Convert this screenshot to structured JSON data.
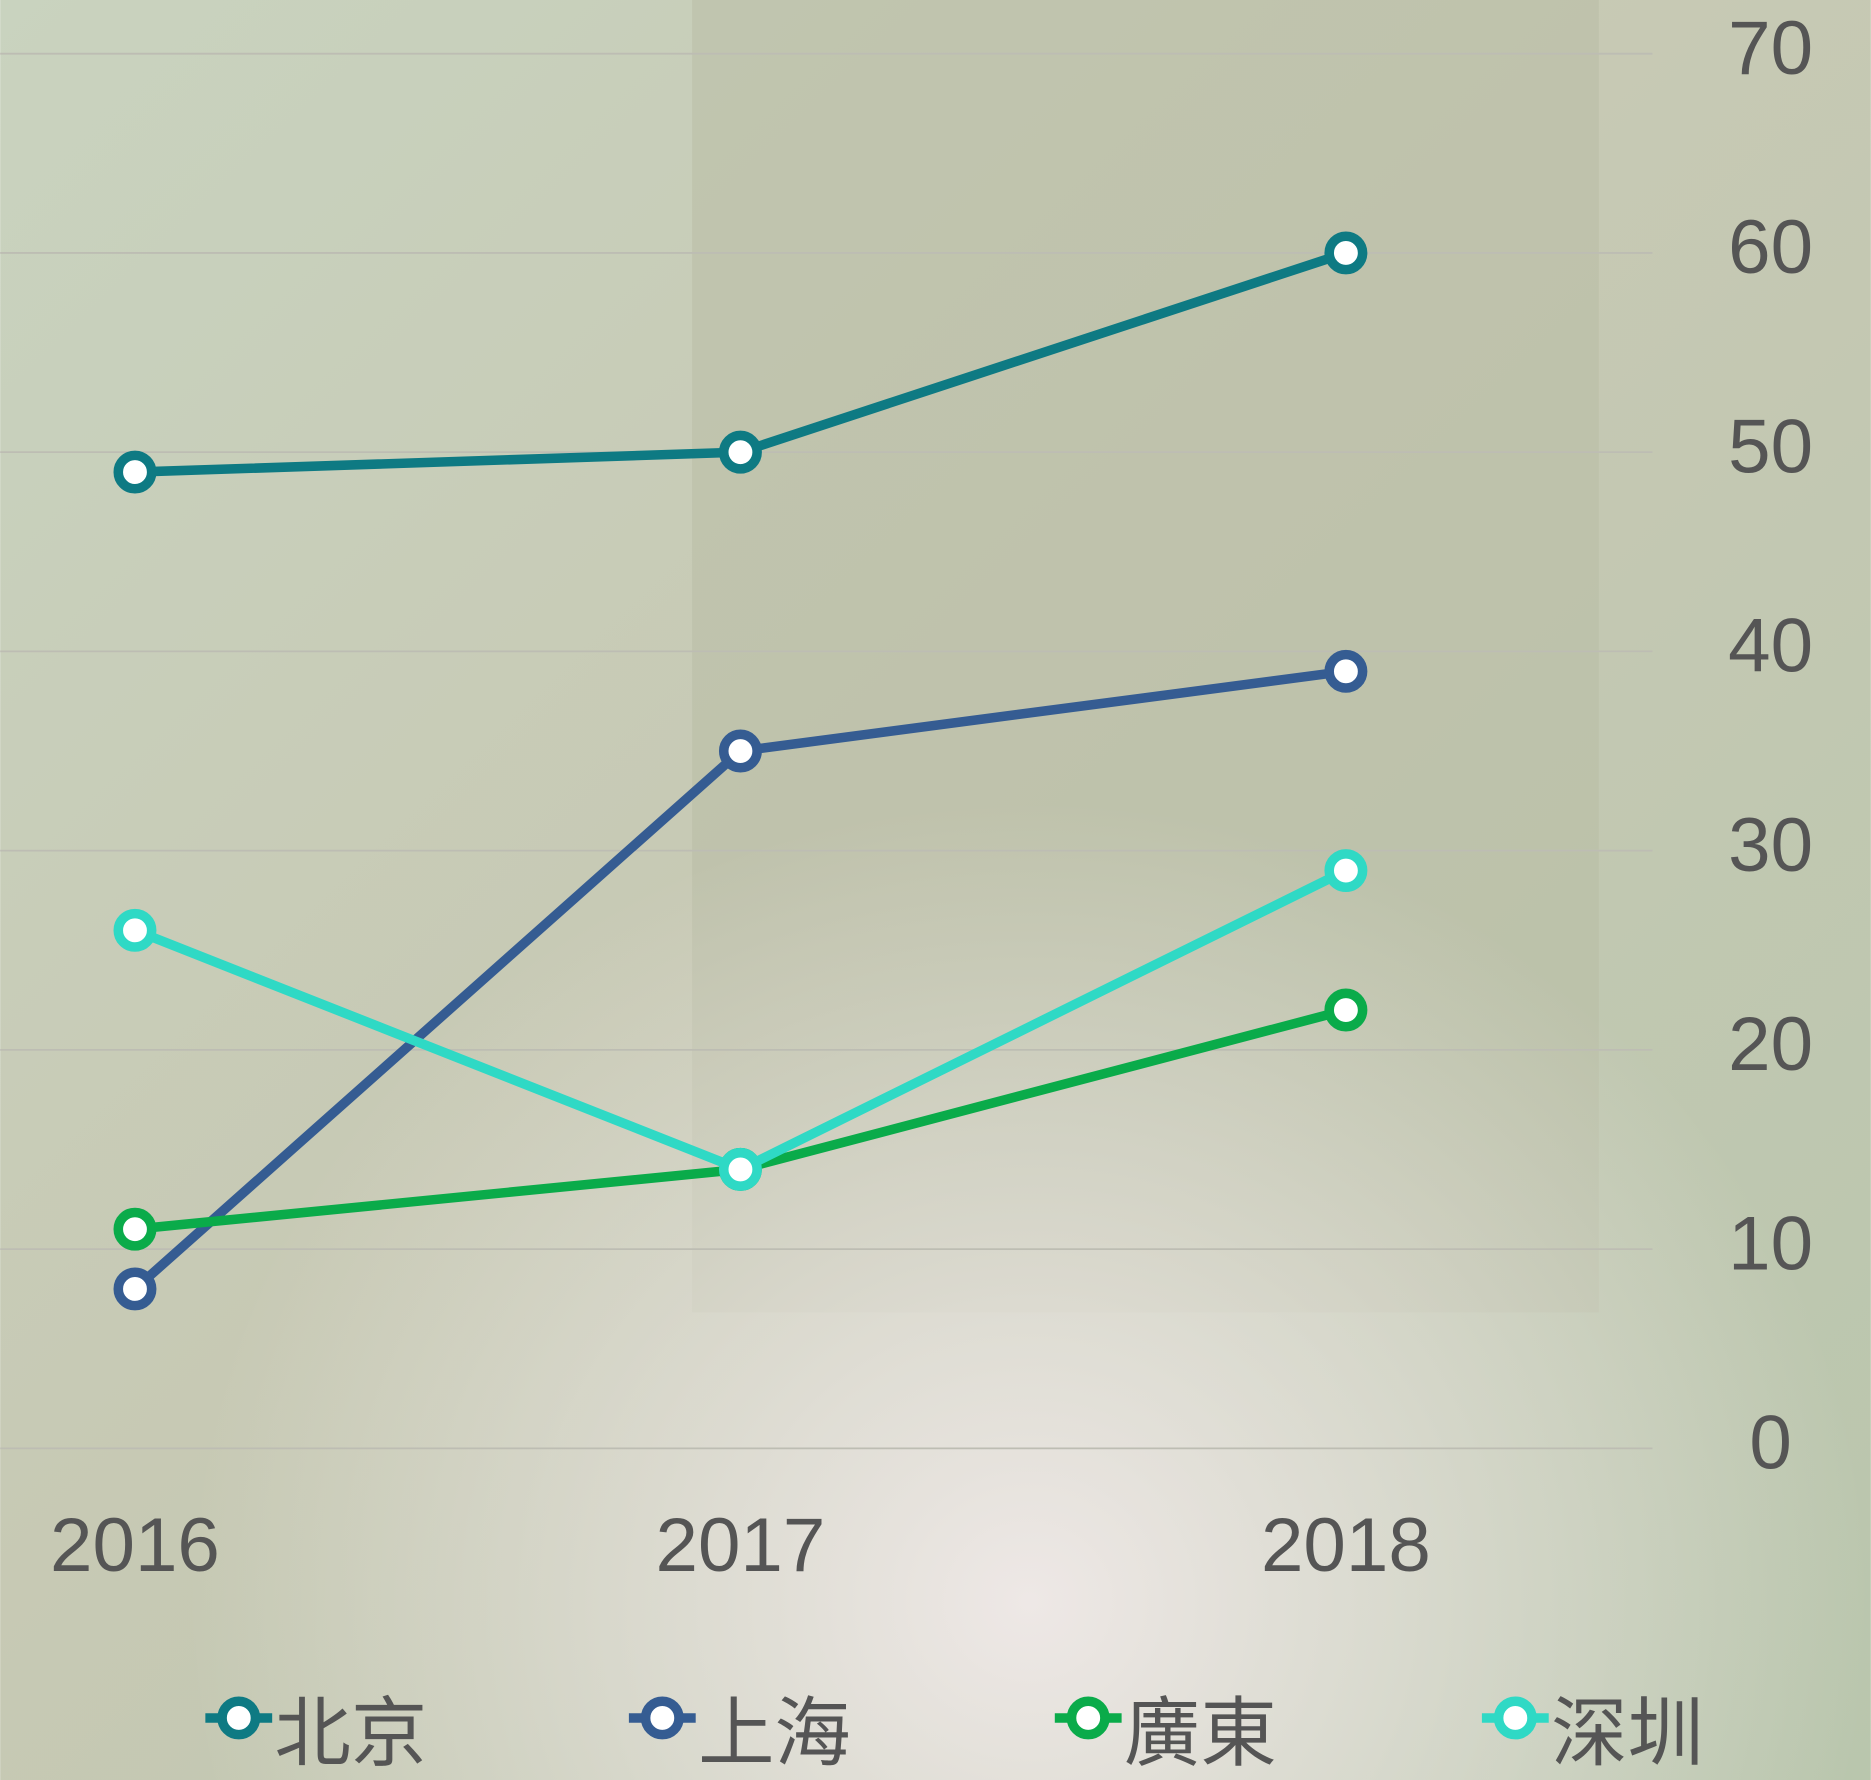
{
  "chart_data": {
    "type": "line",
    "categories": [
      "2016",
      "2017",
      "2018"
    ],
    "series": [
      {
        "name": "北京",
        "color": "#0e7a83",
        "values": [
          49,
          50,
          60
        ]
      },
      {
        "name": "上海",
        "color": "#355c92",
        "values": [
          8,
          35,
          39
        ]
      },
      {
        "name": "廣東",
        "color": "#0aab4a",
        "values": [
          11,
          14,
          22
        ]
      },
      {
        "name": "深圳",
        "color": "#2fd9c5",
        "values": [
          26,
          14,
          29
        ]
      }
    ],
    "ylim": [
      0,
      70
    ],
    "yticks": [
      0,
      10,
      20,
      30,
      40,
      50,
      60,
      70
    ],
    "grid": true,
    "y_axis_side": "right",
    "legend": "bottom"
  }
}
